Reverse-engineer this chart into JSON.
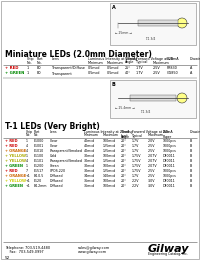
{
  "bg_color": "#ffffff",
  "title_miniature": "Miniature LEDs (2.0mm Diameter)",
  "title_t1": "T-1 LEDs (Very Bright)",
  "mini_rows": [
    {
      "color": "#cc0000",
      "label": "RED",
      "chip": "1",
      "part": "B0",
      "lens": "Transparent/Diffuse",
      "lum_min": "0.5mcd",
      "lum_max": "0.5mcd",
      "angle": "25°",
      "vf_typ": "1.7V",
      "vf_max": "2.5V",
      "bulk": "PR830",
      "draw": "A"
    },
    {
      "color": "#008800",
      "label": "GREEN",
      "chip": "1",
      "part": "B0",
      "lens": "Transparent",
      "lum_min": "0.5mcd",
      "lum_max": "0.5mcd",
      "angle": "40°",
      "vf_typ": "1.7V",
      "vf_max": "2.5V",
      "bulk": "GG850",
      "draw": "A"
    }
  ],
  "t1_rows": [
    {
      "color": "#cc0000",
      "label": "RED",
      "chip": "1",
      "part": "E1000",
      "lens": "Clear",
      "lum_min": "40mcd",
      "lum_max": "100mcd",
      "angle": "20°",
      "vf_typ": "1.7V",
      "vf_max": "2.0V",
      "bulk": "1000pcs",
      "draw": "B"
    },
    {
      "color": "#cc0000",
      "label": "RED",
      "chip": "4",
      "part": "E1001",
      "lens": "Clear",
      "lum_min": "40mcd",
      "lum_max": "125mcd",
      "angle": "20°",
      "vf_typ": "1.7V",
      "vf_max": "2.5V",
      "bulk": "1000pcs",
      "draw": "B"
    },
    {
      "color": "#cc6600",
      "label": "ORANGE",
      "chip": "4",
      "part": "E1010",
      "lens": "Transparent/Smoked",
      "lum_min": "40mcd",
      "lum_max": "125mcd",
      "angle": "20°",
      "vf_typ": "1.7V",
      "vf_max": "2.5V",
      "bulk": "1000pcs",
      "draw": "B"
    },
    {
      "color": "#aaaa00",
      "label": "YELLOW",
      "chip": "1",
      "part": "E1100",
      "lens": "Gold",
      "lum_min": "30mcd",
      "lum_max": "100mcd",
      "angle": "20°",
      "vf_typ": "1.75V",
      "vf_max": "2.07V",
      "bulk": "DF0011",
      "draw": "B"
    },
    {
      "color": "#aaaa00",
      "label": "YELLOW",
      "chip": "4",
      "part": "E1101",
      "lens": "Transparent/Smoked",
      "lum_min": "30mcd",
      "lum_max": "125mcd",
      "angle": "20°",
      "vf_typ": "1.75V",
      "vf_max": "2.07V",
      "bulk": "DF0011",
      "draw": "B"
    },
    {
      "color": "#008800",
      "label": "GREEN",
      "chip": "1",
      "part": "E1200",
      "lens": "Green",
      "lum_min": "30mcd",
      "lum_max": "100mcd",
      "angle": "20°",
      "vf_typ": "1.75V",
      "vf_max": "2.07V",
      "bulk": "DF0011",
      "draw": "B"
    },
    {
      "color": "#cc0000",
      "label": "RED",
      "chip": "7",
      "part": "E1517",
      "lens": "0POS.220",
      "lum_min": "30mcd",
      "lum_max": "125mcd",
      "angle": "20°",
      "vf_typ": "1.75V",
      "vf_max": "2.5V",
      "bulk": "1000pcs",
      "draw": "B"
    },
    {
      "color": "#cc6600",
      "label": "ORANGE",
      "chip": "+1",
      "part": "E4.0.5",
      "lens": "Diffused",
      "lum_min": "34mcd",
      "lum_max": "140mcd",
      "angle": "20°",
      "vf_typ": "1.7V",
      "vf_max": "2.5V",
      "bulk": "1000pcs",
      "draw": "B"
    },
    {
      "color": "#cccc00",
      "label": "YELLOW",
      "chip": "+1",
      "part": "E120",
      "lens": "Diffused",
      "lum_min": "36mcd",
      "lum_max": "100mcd",
      "angle": "20°",
      "vf_typ": "2.2V",
      "vf_max": "3.0V",
      "bulk": "DF0011",
      "draw": "B"
    },
    {
      "color": "#008800",
      "label": "GREEN",
      "chip": "+1",
      "part": "E4.2mm",
      "lens": "Diffused",
      "lum_min": "36mcd",
      "lum_max": "100mcd",
      "angle": "20°",
      "vf_typ": "2.2V",
      "vf_max": "3.0V",
      "bulk": "DF0011",
      "draw": "B"
    }
  ],
  "footer_phone": "Telephone: 703-519-4480",
  "footer_fax": "    Fax:  703-549-0997",
  "footer_email": "sales@gilway.com",
  "footer_web": "www.gilway.com",
  "footer_company": "Gilway",
  "footer_tagline": "Engineering Catalog, Inc.",
  "page_num": "52"
}
